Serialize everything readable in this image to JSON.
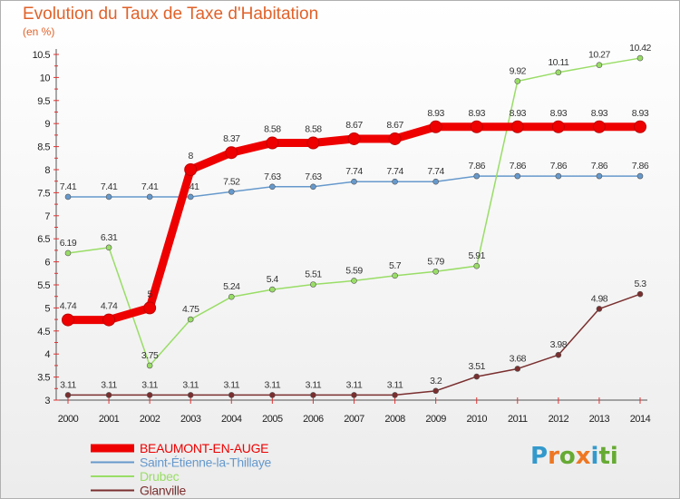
{
  "title": "Evolution du Taux de Taxe d'Habitation",
  "unit_label": "(en %)",
  "logo": {
    "letters": [
      "P",
      "r",
      "o",
      "x",
      "i",
      "t",
      "i"
    ],
    "colors": [
      "#3399cc",
      "#ee7722",
      "#66aa33",
      "#ee7722",
      "#3399cc",
      "#66aa33",
      "#66aa33"
    ]
  },
  "chart_data": {
    "type": "line",
    "title": "Evolution du Taux de Taxe d'Habitation",
    "ylabel": "(en %)",
    "xlabel": "",
    "x": [
      "2000",
      "2001",
      "2002",
      "2003",
      "2004",
      "2005",
      "2006",
      "2007",
      "2008",
      "2009",
      "2010",
      "2011",
      "2012",
      "2013",
      "2014"
    ],
    "ylim": [
      3,
      10.5
    ],
    "yticks": [
      "3",
      "3.5",
      "4",
      "4.5",
      "5",
      "5.5",
      "6",
      "6.5",
      "7",
      "7.5",
      "8",
      "8.5",
      "9",
      "9.5",
      "10",
      "10.5"
    ],
    "grid": false,
    "legend": "bottom-left",
    "series": [
      {
        "name": "BEAUMONT-EN-AUGE",
        "color": "#ee0000",
        "emphasis": true,
        "values": [
          4.74,
          4.74,
          5,
          8,
          8.37,
          8.58,
          8.58,
          8.67,
          8.67,
          8.93,
          8.93,
          8.93,
          8.93,
          8.93,
          8.93
        ],
        "labels": [
          "4.74",
          "4.74",
          "5",
          "8",
          "8.37",
          "8.58",
          "8.58",
          "8.67",
          "8.67",
          "8.93",
          "8.93",
          "8.93",
          "8.93",
          "8.93",
          "8.93"
        ]
      },
      {
        "name": "Saint-Étienne-la-Thillaye",
        "color": "#6699cc",
        "values": [
          7.41,
          7.41,
          7.41,
          7.41,
          7.52,
          7.63,
          7.63,
          7.74,
          7.74,
          7.74,
          7.86,
          7.86,
          7.86,
          7.86,
          7.86
        ],
        "labels": [
          "7.41",
          "7.41",
          "7.41",
          "7.41",
          "7.52",
          "7.63",
          "7.63",
          "7.74",
          "7.74",
          "7.74",
          "7.86",
          "7.86",
          "7.86",
          "7.86",
          "7.86"
        ]
      },
      {
        "name": "Drubec",
        "color": "#99dd66",
        "values": [
          6.19,
          6.31,
          3.75,
          4.75,
          5.24,
          5.4,
          5.51,
          5.59,
          5.7,
          5.79,
          5.91,
          9.92,
          10.11,
          10.27,
          10.42
        ],
        "labels": [
          "6.19",
          "6.31",
          "3.75",
          "4.75",
          "5.24",
          "5.4",
          "5.51",
          "5.59",
          "5.7",
          "5.79",
          "5.91",
          "9.92",
          "10.11",
          "10.27",
          "10.42"
        ]
      },
      {
        "name": "Glanville",
        "color": "#7a2e2e",
        "values": [
          3.11,
          3.11,
          3.11,
          3.11,
          3.11,
          3.11,
          3.11,
          3.11,
          3.11,
          3.2,
          3.51,
          3.68,
          3.98,
          4.98,
          5.3
        ],
        "labels": [
          "3.11",
          "3.11",
          "3.11",
          "3.11",
          "3.11",
          "3.11",
          "3.11",
          "3.11",
          "3.11",
          "3.2",
          "3.51",
          "3.68",
          "3.98",
          "4.98",
          "5.3"
        ]
      }
    ]
  }
}
